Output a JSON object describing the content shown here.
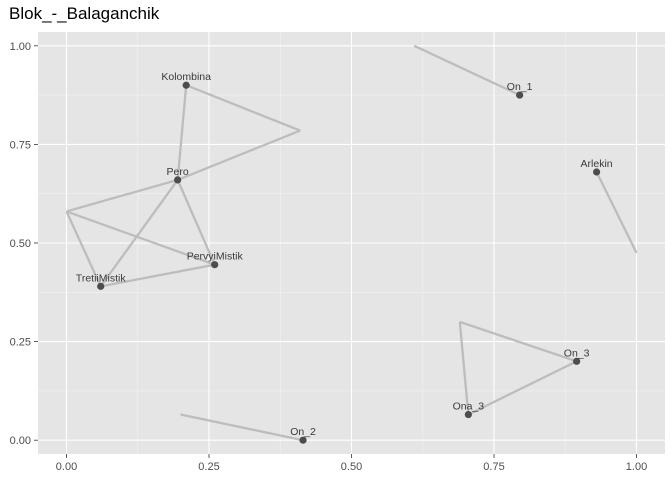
{
  "chart_data": {
    "type": "scatter",
    "title": "Blok_-_Balaganchik",
    "xlabel": "",
    "ylabel": "",
    "xlim": [
      -0.05,
      1.05
    ],
    "ylim": [
      -0.035,
      1.035
    ],
    "x_ticks": [
      0.0,
      0.25,
      0.5,
      0.75,
      1.0
    ],
    "x_tick_labels": [
      "0.00",
      "0.25",
      "0.50",
      "0.75",
      "1.00"
    ],
    "y_ticks": [
      0.0,
      0.25,
      0.5,
      0.75,
      1.0
    ],
    "y_tick_labels": [
      "0.00",
      "0.25",
      "0.50",
      "0.75",
      "1.00"
    ],
    "grid": true,
    "background": "#e5e5e5",
    "point_color": "#4d4d4d",
    "edge_color": "#bdbdbd",
    "nodes": [
      {
        "label": "Kolombina",
        "x": 0.21,
        "y": 0.9
      },
      {
        "label": "Pero",
        "x": 0.195,
        "y": 0.66
      },
      {
        "label": "PervyiMistik",
        "x": 0.26,
        "y": 0.445
      },
      {
        "label": "TretiiMistik",
        "x": 0.06,
        "y": 0.39
      },
      {
        "label": "On_1",
        "x": 0.795,
        "y": 0.875
      },
      {
        "label": "Arlekin",
        "x": 0.93,
        "y": 0.68
      },
      {
        "label": "On_3",
        "x": 0.895,
        "y": 0.2
      },
      {
        "label": "Ona_3",
        "x": 0.705,
        "y": 0.065
      },
      {
        "label": "On_2",
        "x": 0.415,
        "y": 0.0
      }
    ],
    "edges": [
      {
        "from": [
          0.21,
          0.9
        ],
        "to": [
          0.195,
          0.66
        ]
      },
      {
        "from": [
          0.21,
          0.9
        ],
        "to": [
          0.41,
          0.785
        ]
      },
      {
        "from": [
          0.195,
          0.66
        ],
        "to": [
          0.41,
          0.785
        ]
      },
      {
        "from": [
          0.195,
          0.66
        ],
        "to": [
          0.0,
          0.58
        ]
      },
      {
        "from": [
          0.195,
          0.66
        ],
        "to": [
          0.26,
          0.445
        ]
      },
      {
        "from": [
          0.195,
          0.66
        ],
        "to": [
          0.06,
          0.39
        ]
      },
      {
        "from": [
          0.0,
          0.58
        ],
        "to": [
          0.26,
          0.445
        ]
      },
      {
        "from": [
          0.0,
          0.58
        ],
        "to": [
          0.06,
          0.39
        ]
      },
      {
        "from": [
          0.06,
          0.39
        ],
        "to": [
          0.26,
          0.445
        ]
      },
      {
        "from": [
          0.61,
          1.0
        ],
        "to": [
          0.795,
          0.875
        ]
      },
      {
        "from": [
          0.93,
          0.68
        ],
        "to": [
          1.0,
          0.475
        ]
      },
      {
        "from": [
          0.69,
          0.3
        ],
        "to": [
          0.895,
          0.2
        ]
      },
      {
        "from": [
          0.69,
          0.3
        ],
        "to": [
          0.705,
          0.065
        ]
      },
      {
        "from": [
          0.705,
          0.065
        ],
        "to": [
          0.895,
          0.2
        ]
      },
      {
        "from": [
          0.2,
          0.065
        ],
        "to": [
          0.415,
          0.0
        ]
      }
    ]
  }
}
